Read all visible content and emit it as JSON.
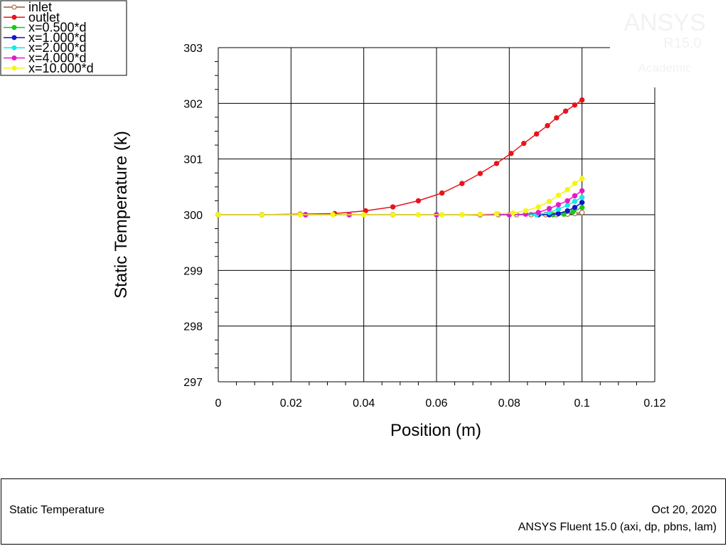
{
  "watermark": {
    "product": "ANSYS",
    "version": "R15.0",
    "edition": "Academic"
  },
  "footer": {
    "left": "Static Temperature",
    "date": "Oct 20, 2020",
    "software": "ANSYS Fluent 15.0 (axi, dp, pbns, lam)"
  },
  "chart_data": {
    "type": "line",
    "xlabel": "Position (m)",
    "ylabel": "Static Temperature (k)",
    "xlim": [
      0,
      0.12
    ],
    "ylim": [
      297,
      303
    ],
    "xticks": [
      0,
      0.02,
      0.04,
      0.06,
      0.08,
      0.1,
      0.12
    ],
    "xtick_labels": [
      "0",
      "0.02",
      "0.04",
      "0.06",
      "0.08",
      "0.1",
      "0.12"
    ],
    "yticks": [
      297,
      298,
      299,
      300,
      301,
      302,
      303
    ],
    "ytick_labels": [
      "297",
      "298",
      "299",
      "300",
      "301",
      "302",
      "303"
    ],
    "grid": true,
    "legend_position": "top-left",
    "series": [
      {
        "name": "inlet",
        "color": "#9b5a2a",
        "marker": "open-circle",
        "points": [
          [
            0,
            300
          ],
          [
            0.012,
            300
          ],
          [
            0.024,
            300
          ],
          [
            0.036,
            300
          ],
          [
            0.048,
            300
          ],
          [
            0.06,
            300
          ],
          [
            0.072,
            300
          ],
          [
            0.077,
            300
          ],
          [
            0.082,
            300
          ],
          [
            0.086,
            300
          ],
          [
            0.09,
            300
          ],
          [
            0.093,
            300
          ],
          [
            0.096,
            300.01
          ],
          [
            0.098,
            300.02
          ],
          [
            0.1,
            300.04
          ]
        ]
      },
      {
        "name": "outlet",
        "color": "#e8141b",
        "marker": "filled-circle",
        "points": [
          [
            0,
            300
          ],
          [
            0.012,
            300
          ],
          [
            0.0225,
            300.01
          ],
          [
            0.032,
            300.02
          ],
          [
            0.0405,
            300.07
          ],
          [
            0.048,
            300.14
          ],
          [
            0.055,
            300.25
          ],
          [
            0.0615,
            300.39
          ],
          [
            0.067,
            300.56
          ],
          [
            0.072,
            300.74
          ],
          [
            0.0765,
            300.92
          ],
          [
            0.0805,
            301.1
          ],
          [
            0.084,
            301.28
          ],
          [
            0.0875,
            301.45
          ],
          [
            0.0905,
            301.6
          ],
          [
            0.093,
            301.74
          ],
          [
            0.0955,
            301.86
          ],
          [
            0.098,
            301.97
          ],
          [
            0.1,
            302.06
          ]
        ]
      },
      {
        "name": "x=0.500*d",
        "color": "#19c819",
        "marker": "filled-circle",
        "points": [
          [
            0,
            300
          ],
          [
            0.012,
            300
          ],
          [
            0.024,
            300
          ],
          [
            0.036,
            300
          ],
          [
            0.048,
            300
          ],
          [
            0.06,
            300
          ],
          [
            0.072,
            300
          ],
          [
            0.08,
            300
          ],
          [
            0.088,
            300
          ],
          [
            0.092,
            300
          ],
          [
            0.095,
            300.01
          ],
          [
            0.0975,
            300.05
          ],
          [
            0.1,
            300.13
          ]
        ]
      },
      {
        "name": "x=1.000*d",
        "color": "#1414c8",
        "marker": "filled-circle",
        "points": [
          [
            0,
            300
          ],
          [
            0.012,
            300
          ],
          [
            0.024,
            300
          ],
          [
            0.036,
            300
          ],
          [
            0.048,
            300
          ],
          [
            0.06,
            300
          ],
          [
            0.072,
            300
          ],
          [
            0.08,
            300
          ],
          [
            0.088,
            300
          ],
          [
            0.091,
            300
          ],
          [
            0.0935,
            300.02
          ],
          [
            0.096,
            300.07
          ],
          [
            0.098,
            300.13
          ],
          [
            0.1,
            300.22
          ]
        ]
      },
      {
        "name": "x=2.000*d",
        "color": "#19e6e6",
        "marker": "filled-circle",
        "points": [
          [
            0,
            300
          ],
          [
            0.012,
            300
          ],
          [
            0.024,
            300
          ],
          [
            0.036,
            300
          ],
          [
            0.048,
            300
          ],
          [
            0.06,
            300
          ],
          [
            0.072,
            300
          ],
          [
            0.08,
            300
          ],
          [
            0.0875,
            300
          ],
          [
            0.091,
            300.04
          ],
          [
            0.0935,
            300.1
          ],
          [
            0.096,
            300.17
          ],
          [
            0.098,
            300.24
          ],
          [
            0.1,
            300.31
          ]
        ]
      },
      {
        "name": "x=4.000*d",
        "color": "#e619c8",
        "marker": "filled-circle",
        "points": [
          [
            0,
            300
          ],
          [
            0.012,
            300
          ],
          [
            0.024,
            300
          ],
          [
            0.036,
            300
          ],
          [
            0.048,
            300
          ],
          [
            0.06,
            300
          ],
          [
            0.072,
            300
          ],
          [
            0.08,
            300
          ],
          [
            0.0845,
            300.01
          ],
          [
            0.088,
            300.04
          ],
          [
            0.091,
            300.11
          ],
          [
            0.0935,
            300.18
          ],
          [
            0.096,
            300.25
          ],
          [
            0.098,
            300.34
          ],
          [
            0.1,
            300.43
          ]
        ]
      },
      {
        "name": "x=10.000*d",
        "color": "#f5f514",
        "marker": "filled-circle",
        "points": [
          [
            0,
            300
          ],
          [
            0.012,
            300
          ],
          [
            0.0225,
            300
          ],
          [
            0.0315,
            300
          ],
          [
            0.04,
            300
          ],
          [
            0.048,
            300
          ],
          [
            0.055,
            300
          ],
          [
            0.0615,
            300
          ],
          [
            0.067,
            300
          ],
          [
            0.072,
            300.01
          ],
          [
            0.0765,
            300.02
          ],
          [
            0.081,
            300.03
          ],
          [
            0.0845,
            300.07
          ],
          [
            0.088,
            300.14
          ],
          [
            0.091,
            300.24
          ],
          [
            0.0935,
            300.35
          ],
          [
            0.096,
            300.45
          ],
          [
            0.098,
            300.56
          ],
          [
            0.1,
            300.65
          ]
        ]
      }
    ]
  }
}
